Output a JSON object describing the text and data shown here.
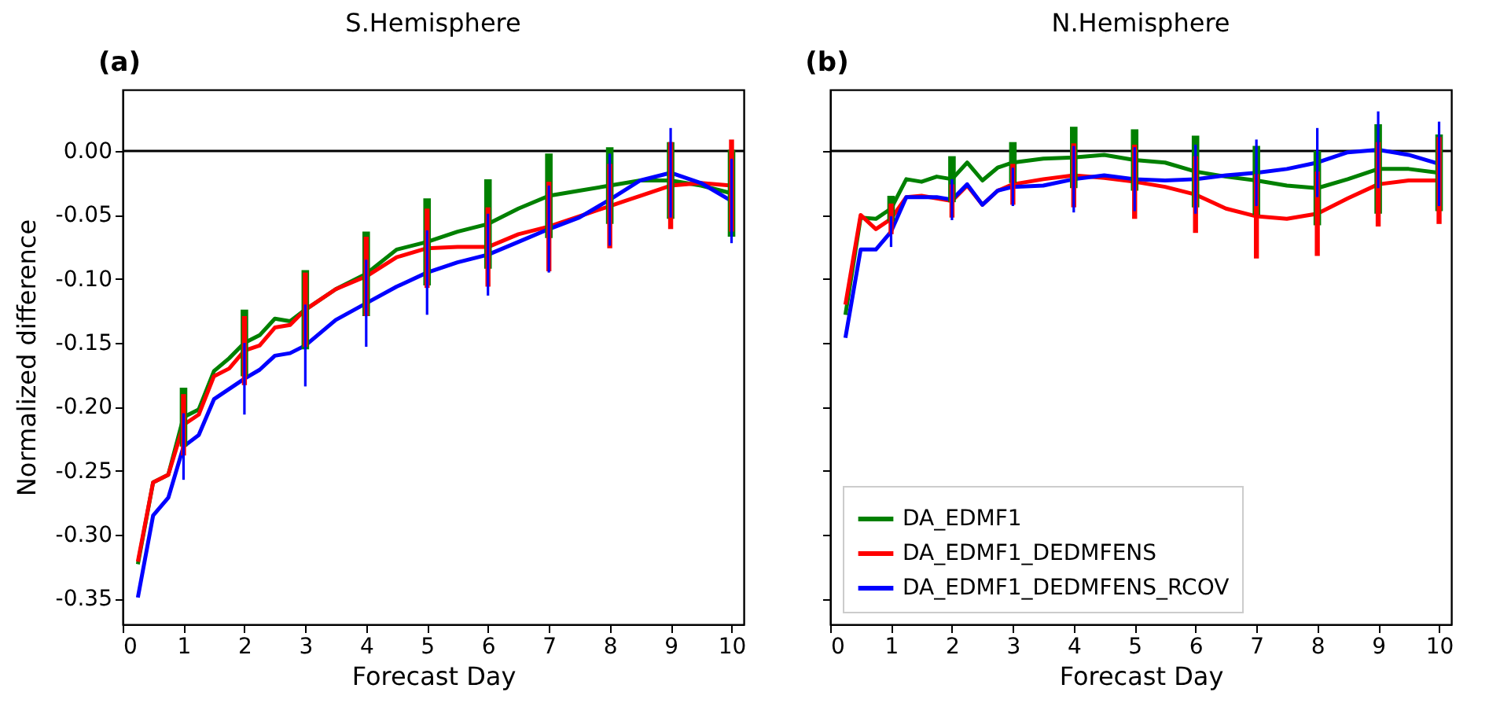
{
  "chart_data": [
    {
      "type": "line",
      "title": "S.Hemisphere",
      "annotations": [
        "(a)"
      ],
      "xlabel": "Forecast Day",
      "ylabel": "Normalized difference",
      "xlim": [
        0,
        10.2
      ],
      "xticks": [
        0,
        1,
        2,
        3,
        4,
        5,
        6,
        7,
        8,
        9,
        10
      ],
      "ylim": [
        -0.37,
        0.048
      ],
      "yticks": [
        {
          "value": 0,
          "label": "0.00"
        },
        {
          "value": -0.05,
          "label": "-0.05"
        },
        {
          "value": -0.1,
          "label": "-0.10"
        },
        {
          "value": -0.15,
          "label": "-0.15"
        },
        {
          "value": -0.2,
          "label": "-0.20"
        },
        {
          "value": -0.25,
          "label": "-0.25"
        },
        {
          "value": -0.3,
          "label": "-0.30"
        },
        {
          "value": -0.35,
          "label": "-0.35"
        }
      ],
      "grid": false,
      "ref_lines": [
        {
          "axis": "y",
          "value": 0,
          "color": "#000000"
        }
      ],
      "x": [
        0.25,
        0.5,
        0.75,
        1,
        1.25,
        1.5,
        1.75,
        2,
        2.25,
        2.5,
        2.75,
        3,
        3.5,
        4,
        4.5,
        5,
        5.5,
        6,
        6.5,
        7,
        7.5,
        8,
        8.5,
        9,
        9.5,
        10
      ],
      "series": [
        {
          "color": "#008000",
          "values": [
            -0.323,
            -0.259,
            -0.253,
            -0.208,
            -0.202,
            -0.172,
            -0.162,
            -0.15,
            -0.144,
            -0.131,
            -0.133,
            -0.124,
            -0.108,
            -0.096,
            -0.077,
            -0.071,
            -0.063,
            -0.057,
            -0.045,
            -0.035,
            -0.031,
            -0.027,
            -0.023,
            -0.023,
            -0.027,
            -0.033
          ],
          "errors": [
            null,
            null,
            null,
            0.023,
            null,
            null,
            null,
            0.026,
            null,
            null,
            null,
            0.031,
            null,
            0.033,
            null,
            0.034,
            null,
            0.035,
            null,
            0.033,
            null,
            0.03,
            null,
            0.03,
            null,
            0.034
          ]
        },
        {
          "color": "#ff0000",
          "values": [
            -0.321,
            -0.259,
            -0.253,
            -0.214,
            -0.206,
            -0.176,
            -0.17,
            -0.156,
            -0.152,
            -0.138,
            -0.136,
            -0.124,
            -0.108,
            -0.098,
            -0.083,
            -0.076,
            -0.075,
            -0.075,
            -0.065,
            -0.059,
            -0.051,
            -0.043,
            -0.035,
            -0.027,
            -0.025,
            -0.027
          ],
          "errors": [
            null,
            null,
            null,
            0.024,
            null,
            null,
            null,
            0.027,
            null,
            null,
            null,
            0.029,
            null,
            0.031,
            null,
            0.031,
            null,
            0.031,
            null,
            0.035,
            null,
            0.033,
            null,
            0.034,
            null,
            0.036
          ]
        },
        {
          "color": "#0000ff",
          "values": [
            -0.349,
            -0.285,
            -0.271,
            -0.231,
            -0.222,
            -0.194,
            -0.186,
            -0.178,
            -0.171,
            -0.16,
            -0.158,
            -0.152,
            -0.132,
            -0.119,
            -0.106,
            -0.095,
            -0.087,
            -0.081,
            -0.071,
            -0.061,
            -0.052,
            -0.038,
            -0.023,
            -0.017,
            -0.025,
            -0.039
          ],
          "errors": [
            null,
            null,
            null,
            0.026,
            null,
            null,
            null,
            0.028,
            null,
            null,
            null,
            0.032,
            null,
            0.034,
            null,
            0.033,
            null,
            0.032,
            null,
            0.034,
            null,
            0.036,
            null,
            0.035,
            null,
            0.033
          ]
        }
      ]
    },
    {
      "type": "line",
      "title": "N.Hemisphere",
      "annotations": [
        "(b)"
      ],
      "xlabel": "Forecast Day",
      "xlim": [
        0,
        10.2
      ],
      "xticks": [
        0,
        1,
        2,
        3,
        4,
        5,
        6,
        7,
        8,
        9,
        10
      ],
      "ylim": [
        -0.37,
        0.048
      ],
      "yticks": [
        0,
        -0.05,
        -0.1,
        -0.15,
        -0.2,
        -0.25,
        -0.3,
        -0.35
      ],
      "tick_labels": "x",
      "grid": false,
      "legend": "bottom left",
      "ref_lines": [
        {
          "axis": "y",
          "value": 0,
          "color": "#000000"
        }
      ],
      "x": [
        0.25,
        0.5,
        0.75,
        1,
        1.25,
        1.5,
        1.75,
        2,
        2.25,
        2.5,
        2.75,
        3,
        3.5,
        4,
        4.5,
        5,
        5.5,
        6,
        6.5,
        7,
        7.5,
        8,
        8.5,
        9,
        9.5,
        10
      ],
      "series": [
        {
          "name": "DA_EDMF1",
          "color": "#008000",
          "values": [
            -0.128,
            -0.052,
            -0.053,
            -0.045,
            -0.022,
            -0.024,
            -0.02,
            -0.022,
            -0.009,
            -0.023,
            -0.013,
            -0.009,
            -0.006,
            -0.005,
            -0.003,
            -0.007,
            -0.009,
            -0.016,
            -0.02,
            -0.023,
            -0.027,
            -0.029,
            -0.022,
            -0.014,
            -0.014,
            -0.017
          ],
          "errors": [
            null,
            null,
            null,
            0.01,
            null,
            null,
            null,
            0.018,
            null,
            null,
            null,
            0.016,
            null,
            0.024,
            null,
            0.024,
            null,
            0.028,
            null,
            0.027,
            null,
            0.029,
            null,
            0.035,
            null,
            0.03
          ]
        },
        {
          "name": "DA_EDMF1_DEDMFENS",
          "color": "#ff0000",
          "values": [
            -0.12,
            -0.05,
            -0.061,
            -0.053,
            -0.036,
            -0.035,
            -0.037,
            -0.039,
            -0.027,
            -0.042,
            -0.031,
            -0.026,
            -0.022,
            -0.019,
            -0.021,
            -0.024,
            -0.028,
            -0.034,
            -0.045,
            -0.051,
            -0.053,
            -0.049,
            -0.037,
            -0.026,
            -0.023,
            -0.023
          ],
          "errors": [
            null,
            null,
            null,
            0.012,
            null,
            null,
            null,
            0.013,
            null,
            null,
            null,
            0.016,
            null,
            0.025,
            null,
            0.029,
            null,
            0.03,
            null,
            0.033,
            null,
            0.033,
            null,
            0.033,
            null,
            0.034
          ]
        },
        {
          "name": "DA_EDMF1_DEDMFENS_RCOV",
          "color": "#0000ff",
          "values": [
            -0.146,
            -0.077,
            -0.077,
            -0.063,
            -0.036,
            -0.036,
            -0.036,
            -0.038,
            -0.026,
            -0.042,
            -0.031,
            -0.028,
            -0.027,
            -0.022,
            -0.019,
            -0.022,
            -0.023,
            -0.022,
            -0.019,
            -0.017,
            -0.014,
            -0.009,
            -0.001,
            0.001,
            -0.003,
            -0.01
          ],
          "errors": [
            null,
            null,
            null,
            0.012,
            null,
            null,
            null,
            0.016,
            null,
            null,
            null,
            0.015,
            null,
            0.026,
            null,
            0.025,
            null,
            0.027,
            null,
            0.026,
            null,
            0.027,
            null,
            0.03,
            null,
            0.033
          ]
        }
      ]
    }
  ]
}
